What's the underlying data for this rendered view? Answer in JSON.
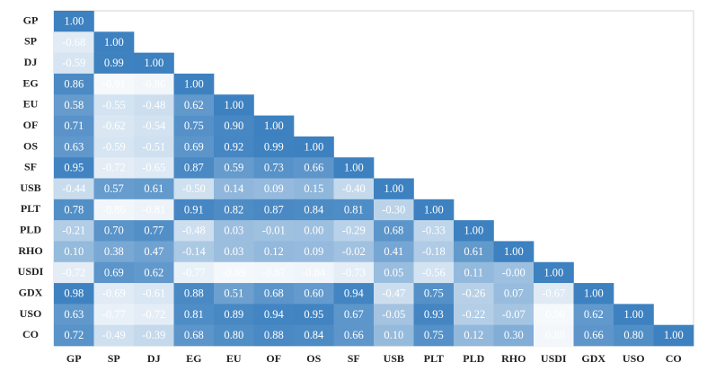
{
  "chart_data": {
    "type": "heatmap",
    "categories": [
      "GP",
      "SP",
      "DJ",
      "EG",
      "EU",
      "OF",
      "OS",
      "SF",
      "USB",
      "PLT",
      "PLD",
      "RHO",
      "USDI",
      "GDX",
      "USO",
      "CO"
    ],
    "values": [
      [
        1.0
      ],
      [
        -0.68,
        1.0
      ],
      [
        -0.59,
        0.99,
        1.0
      ],
      [
        0.86,
        -0.91,
        -0.86,
        1.0
      ],
      [
        0.58,
        -0.55,
        -0.48,
        0.62,
        1.0
      ],
      [
        0.71,
        -0.62,
        -0.54,
        0.75,
        0.9,
        1.0
      ],
      [
        0.63,
        -0.59,
        -0.51,
        0.69,
        0.92,
        0.99,
        1.0
      ],
      [
        0.95,
        -0.72,
        -0.65,
        0.87,
        0.59,
        0.73,
        0.66,
        1.0
      ],
      [
        -0.44,
        0.57,
        0.61,
        -0.5,
        0.14,
        0.09,
        0.15,
        -0.4,
        1.0
      ],
      [
        0.78,
        -0.86,
        -0.81,
        0.91,
        0.82,
        0.87,
        0.84,
        0.81,
        -0.3,
        1.0
      ],
      [
        -0.21,
        0.7,
        0.77,
        -0.48,
        0.03,
        -0.01,
        0.0,
        -0.29,
        0.68,
        -0.33,
        1.0
      ],
      [
        0.1,
        0.38,
        0.47,
        -0.14,
        0.03,
        0.12,
        0.09,
        -0.02,
        0.41,
        -0.18,
        0.61,
        1.0
      ],
      [
        -0.72,
        0.69,
        0.62,
        -0.77,
        -0.89,
        -0.87,
        -0.84,
        -0.73,
        0.05,
        -0.56,
        0.11,
        -0.0,
        1.0
      ],
      [
        0.98,
        -0.69,
        -0.61,
        0.88,
        0.51,
        0.68,
        0.6,
        0.94,
        -0.47,
        0.75,
        -0.26,
        0.07,
        -0.67,
        1.0
      ],
      [
        0.63,
        -0.77,
        -0.72,
        0.81,
        0.89,
        0.94,
        0.95,
        0.67,
        -0.05,
        0.93,
        -0.22,
        -0.07,
        -0.9,
        0.62,
        1.0
      ],
      [
        0.72,
        -0.49,
        -0.39,
        0.68,
        0.8,
        0.88,
        0.84,
        0.66,
        0.1,
        0.75,
        0.12,
        0.3,
        -0.88,
        0.66,
        0.8,
        1.0
      ]
    ],
    "value_labels": [
      [
        "1.00"
      ],
      [
        "-0.68",
        "1.00"
      ],
      [
        "-0.59",
        "0.99",
        "1.00"
      ],
      [
        "0.86",
        "-0.91",
        "-0.86",
        "1.00"
      ],
      [
        "0.58",
        "-0.55",
        "-0.48",
        "0.62",
        "1.00"
      ],
      [
        "0.71",
        "-0.62",
        "-0.54",
        "0.75",
        "0.90",
        "1.00"
      ],
      [
        "0.63",
        "-0.59",
        "-0.51",
        "0.69",
        "0.92",
        "0.99",
        "1.00"
      ],
      [
        "0.95",
        "-0.72",
        "-0.65",
        "0.87",
        "0.59",
        "0.73",
        "0.66",
        "1.00"
      ],
      [
        "-0.44",
        "0.57",
        "0.61",
        "-0.50",
        "0.14",
        "0.09",
        "0.15",
        "-0.40",
        "1.00"
      ],
      [
        "0.78",
        "-0.86",
        "-0.81",
        "0.91",
        "0.82",
        "0.87",
        "0.84",
        "0.81",
        "-0.30",
        "1.00"
      ],
      [
        "-0.21",
        "0.70",
        "0.77",
        "-0.48",
        "0.03",
        "-0.01",
        "0.00",
        "-0.29",
        "0.68",
        "-0.33",
        "1.00"
      ],
      [
        "0.10",
        "0.38",
        "0.47",
        "-0.14",
        "0.03",
        "0.12",
        "0.09",
        "-0.02",
        "0.41",
        "-0.18",
        "0.61",
        "1.00"
      ],
      [
        "-0.72",
        "0.69",
        "0.62",
        "-0.77",
        "-0.89",
        "-0.87",
        "-0.84",
        "-0.73",
        "0.05",
        "-0.56",
        "0.11",
        "-0.00",
        "1.00"
      ],
      [
        "0.98",
        "-0.69",
        "-0.61",
        "0.88",
        "0.51",
        "0.68",
        "0.60",
        "0.94",
        "-0.47",
        "0.75",
        "-0.26",
        "0.07",
        "-0.67",
        "1.00"
      ],
      [
        "0.63",
        "-0.77",
        "-0.72",
        "0.81",
        "0.89",
        "0.94",
        "0.95",
        "0.67",
        "-0.05",
        "0.93",
        "-0.22",
        "-0.07",
        "-0.90",
        "0.62",
        "1.00"
      ],
      [
        "0.72",
        "-0.49",
        "-0.39",
        "0.68",
        "0.80",
        "0.88",
        "0.84",
        "0.66",
        "0.10",
        "0.75",
        "0.12",
        "0.30",
        "-0.88",
        "0.66",
        "0.80",
        "1.00"
      ]
    ],
    "clim": [
      -1,
      1
    ],
    "colors": [
      "#ffffff",
      "#3d81c0"
    ]
  }
}
